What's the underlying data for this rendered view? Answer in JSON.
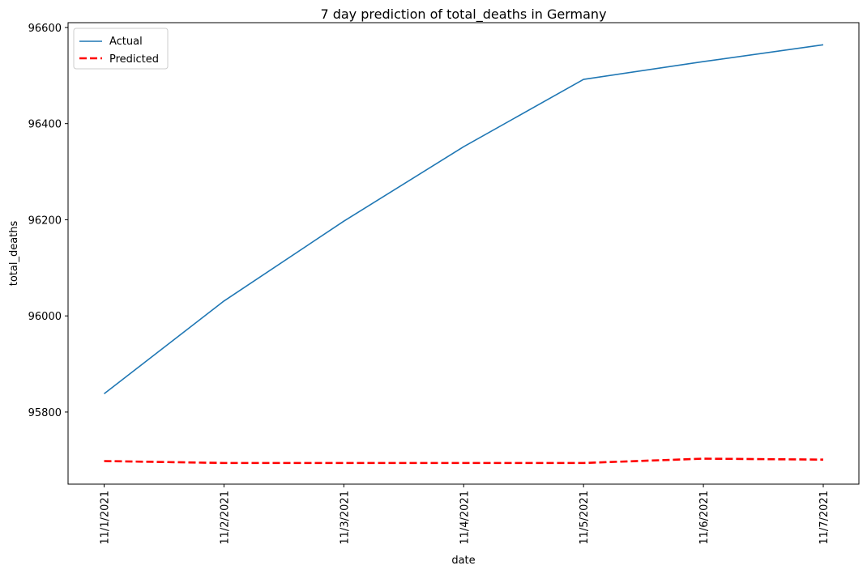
{
  "chart_data": {
    "type": "line",
    "title": "7 day prediction of total_deaths in Germany",
    "xlabel": "date",
    "ylabel": "total_deaths",
    "categories": [
      "11/1/2021",
      "11/2/2021",
      "11/3/2021",
      "11/4/2021",
      "11/5/2021",
      "11/6/2021",
      "11/7/2021"
    ],
    "yticks": [
      95800,
      96000,
      96200,
      96400,
      96600
    ],
    "ylim": [
      95650,
      96610
    ],
    "grid": false,
    "legend_position": "top-left",
    "series": [
      {
        "name": "Actual",
        "color": "#1f77b4",
        "style": "solid",
        "values": [
          95838,
          96031,
          96197,
          96352,
          96492,
          96529,
          96564
        ]
      },
      {
        "name": "Predicted",
        "color": "#ff0000",
        "style": "dashed",
        "values": [
          95698,
          95694,
          95694,
          95694,
          95694,
          95703,
          95701
        ]
      }
    ]
  }
}
